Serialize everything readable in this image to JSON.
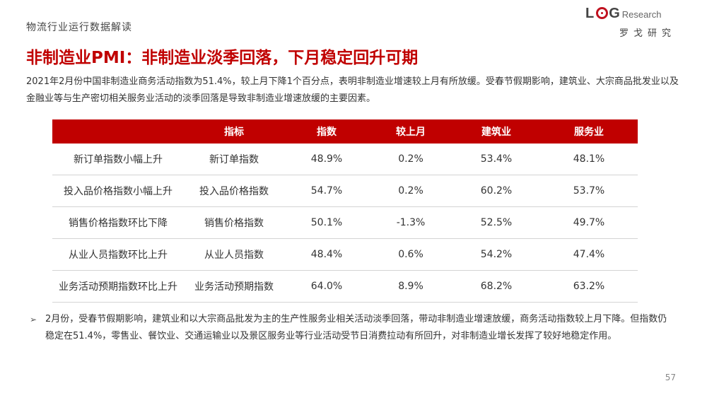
{
  "header": {
    "section_label": "物流行业运行数据解读",
    "logo_letters_1": "L",
    "logo_letters_2": "G",
    "logo_research": "Research",
    "logo_cn": "罗戈研究"
  },
  "title": "非制造业PMI：非制造业淡季回落，下月稳定回升可期",
  "intro": "2021年2月份中国非制造业商务活动指数为51.4%，较上月下降1个百分点，表明非制造业增速较上月有所放缓。受春节假期影响，建筑业、大宗商品批发业以及金融业等与生产密切相关服务业活动的淡季回落是导致非制造业增速放缓的主要因素。",
  "table": {
    "headers": [
      "",
      "指标",
      "指数",
      "较上月",
      "建筑业",
      "服务业"
    ],
    "rows": [
      [
        "新订单指数小幅上升",
        "新订单指数",
        "48.9%",
        "0.2%",
        "53.4%",
        "48.1%"
      ],
      [
        "投入品价格指数小幅上升",
        "投入品价格指数",
        "54.7%",
        "0.2%",
        "60.2%",
        "53.7%"
      ],
      [
        "销售价格指数环比下降",
        "销售价格指数",
        "50.1%",
        "-1.3%",
        "52.5%",
        "49.7%"
      ],
      [
        "从业人员指数环比上升",
        "从业人员指数",
        "48.4%",
        "0.6%",
        "54.2%",
        "47.4%"
      ],
      [
        "业务活动预期指数环比上升",
        "业务活动预期指数",
        "64.0%",
        "8.9%",
        "68.2%",
        "63.2%"
      ]
    ]
  },
  "bullet": {
    "icon": "arrow-right-icon",
    "text": "2月份，受春节假期影响，建筑业和以大宗商品批发为主的生产性服务业相关活动淡季回落，带动非制造业增速放缓，商务活动指数较上月下降。但指数仍稳定在51.4%，零售业、餐饮业、交通运输业以及景区服务业等行业活动受节日消费拉动有所回升，对非制造业增长发挥了较好地稳定作用。"
  },
  "page_number": "57",
  "colors": {
    "accent": "#c00000",
    "negative": "#d00000"
  }
}
